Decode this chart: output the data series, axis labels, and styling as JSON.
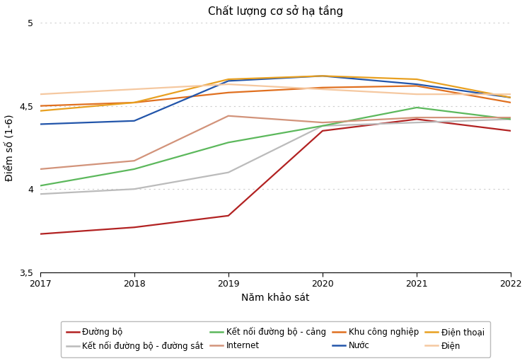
{
  "title": "Chất lượng cơ sở hạ tầng",
  "xlabel": "Năm khảo sát",
  "ylabel": "Điểm số (1-6)",
  "years": [
    2017,
    2018,
    2019,
    2020,
    2021,
    2022
  ],
  "series": [
    {
      "label": "Đường bộ",
      "color": "#B22222",
      "values": [
        3.73,
        3.77,
        3.84,
        4.35,
        4.42,
        4.35
      ]
    },
    {
      "label": "Kết nối đường bộ - đường sắt",
      "color": "#BBBBBB",
      "values": [
        3.97,
        4.0,
        4.1,
        4.38,
        4.4,
        4.42
      ]
    },
    {
      "label": "Kết nối đường bộ - cảng",
      "color": "#5CB85C",
      "values": [
        4.02,
        4.12,
        4.28,
        4.38,
        4.49,
        4.42
      ]
    },
    {
      "label": "Internet",
      "color": "#D2937A",
      "values": [
        4.12,
        4.17,
        4.44,
        4.4,
        4.43,
        4.43
      ]
    },
    {
      "label": "Khu công nghiệp",
      "color": "#E07020",
      "values": [
        4.5,
        4.52,
        4.58,
        4.61,
        4.62,
        4.52
      ]
    },
    {
      "label": "Nước",
      "color": "#2255AA",
      "values": [
        4.39,
        4.41,
        4.65,
        4.68,
        4.63,
        4.55
      ]
    },
    {
      "label": "Điện thoại",
      "color": "#E8A020",
      "values": [
        4.47,
        4.52,
        4.66,
        4.68,
        4.66,
        4.55
      ]
    },
    {
      "label": "Điện",
      "color": "#F5C8A0",
      "values": [
        4.57,
        4.6,
        4.63,
        4.6,
        4.57,
        4.57
      ]
    }
  ],
  "legend_order": [
    0,
    1,
    2,
    3,
    4,
    5,
    6,
    7
  ],
  "ylim": [
    3.5,
    5.0
  ],
  "yticks": [
    3.5,
    4.0,
    4.5,
    5.0
  ],
  "ytick_labels": [
    "3,5",
    "4",
    "4,5",
    "5"
  ],
  "grid_color": "#CCCCCC",
  "background_color": "#FFFFFF",
  "fig_width": 7.45,
  "fig_height": 5.13,
  "dpi": 100
}
